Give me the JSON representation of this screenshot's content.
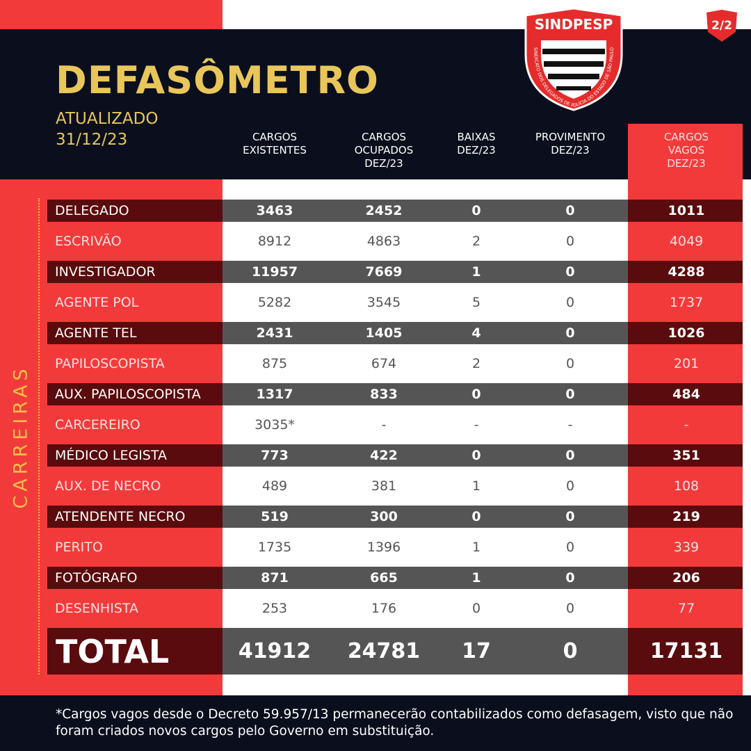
{
  "badge": "2/2",
  "logo": {
    "name": "SINDPESP",
    "motto": "SINDICATO DOS DELEGADOS DE POLÍCIA DO ESTADO DE SÃO PAULO"
  },
  "header": {
    "title": "DEFASÔMETRO",
    "updated": "ATUALIZADO",
    "date": "31/12/23"
  },
  "table": {
    "side_label": "CARREIRAS",
    "columns": [
      "CARGOS\nEXISTENTES",
      "CARGOS\nOCUPADOS\nDEZ/23",
      "BAIXAS\nDEZ/23",
      "PROVIMENTO\nDEZ/23",
      "CARGOS\nVAGOS\nDEZ/23"
    ],
    "rows": [
      [
        "DELEGADO",
        3463,
        2452,
        0,
        0,
        1011
      ],
      [
        "ESCRIVÃO",
        8912,
        4863,
        2,
        0,
        4049
      ],
      [
        "INVESTIGADOR",
        11957,
        7669,
        1,
        0,
        4288
      ],
      [
        "AGENTE POL",
        5282,
        3545,
        5,
        0,
        1737
      ],
      [
        "AGENTE TEL",
        2431,
        1405,
        4,
        0,
        1026
      ],
      [
        "PAPILOSCOPISTA",
        875,
        674,
        2,
        0,
        201
      ],
      [
        "AUX. PAPILOSCOPISTA",
        1317,
        833,
        0,
        0,
        484
      ],
      [
        "CARCEREIRO",
        "3035*",
        "-",
        "-",
        "-",
        "-"
      ],
      [
        "MÉDICO LEGISTA",
        773,
        422,
        0,
        0,
        351
      ],
      [
        "AUX. DE NECRO",
        489,
        381,
        1,
        0,
        108
      ],
      [
        "ATENDENTE NECRO",
        519,
        300,
        0,
        0,
        219
      ],
      [
        "PERITO",
        1735,
        1396,
        1,
        0,
        339
      ],
      [
        "FOTÓGRAFO",
        871,
        665,
        1,
        0,
        206
      ],
      [
        "DESENHISTA",
        253,
        176,
        0,
        0,
        77
      ]
    ],
    "total": [
      "TOTAL",
      41912,
      24781,
      17,
      0,
      17131
    ]
  },
  "footnote": "*Cargos vagos desde o Decreto 59.957/13 permanecerão contabilizados como defasagem, visto que não foram criados novos cargos pelo Governo em substituição."
}
